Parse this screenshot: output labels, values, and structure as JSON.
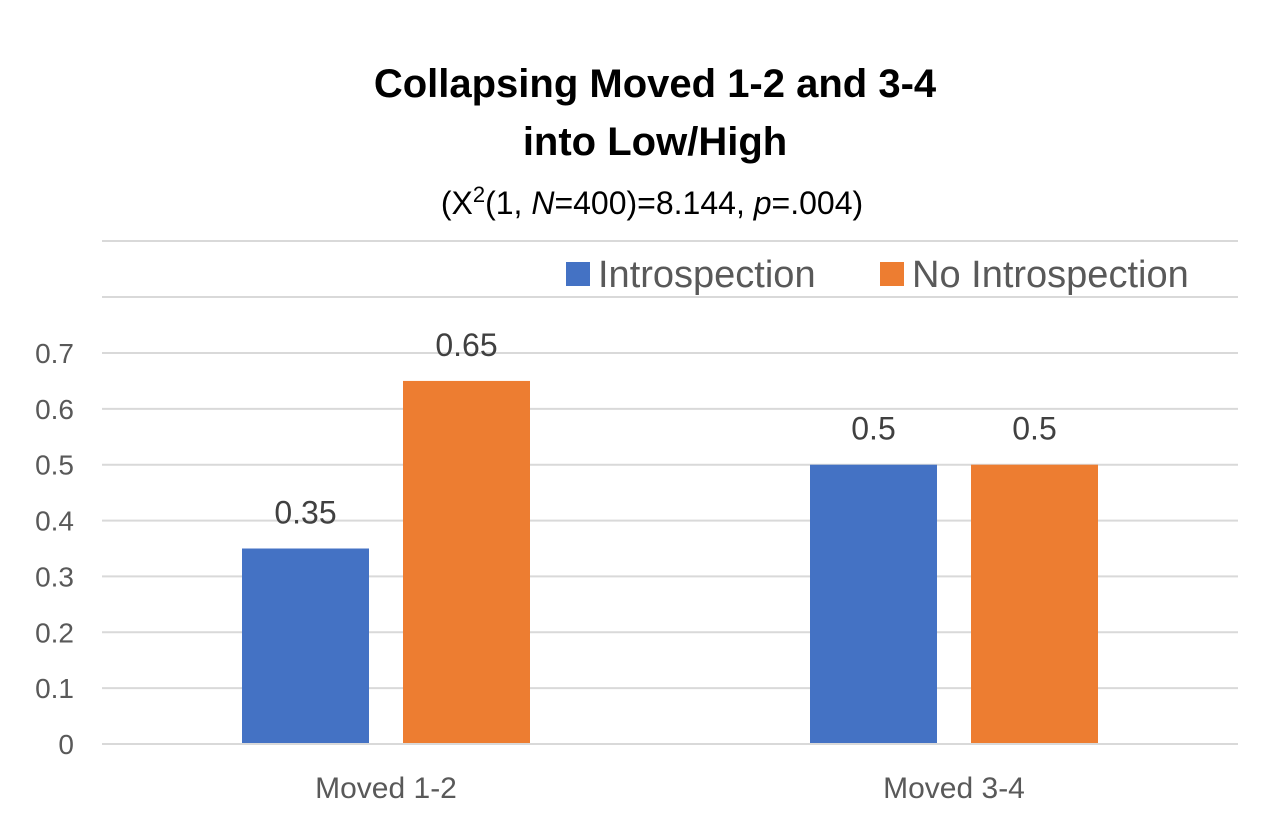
{
  "chart_data": {
    "type": "bar",
    "title": "Collapsing Moved 1-2 and 3-4 into Low/High",
    "title_lines": [
      "Collapsing Moved 1-2 and 3-4",
      "into Low/High"
    ],
    "subtitle": {
      "open": "(X",
      "sup": "2",
      "part1": "(1, ",
      "n_symbol": "N",
      "part2": "=400)=8.144, ",
      "p_symbol": "p",
      "part3": "=.004)"
    },
    "categories": [
      "Moved 1-2",
      "Moved 3-4"
    ],
    "series": [
      {
        "name": "Introspection",
        "values": [
          0.35,
          0.5
        ],
        "labels": [
          "0.35",
          "0.5"
        ],
        "color": "#4472c4"
      },
      {
        "name": "No Introspection",
        "values": [
          0.65,
          0.5
        ],
        "labels": [
          "0.65",
          "0.5"
        ],
        "color": "#ed7d31"
      }
    ],
    "yticks": [
      "0",
      "0.1",
      "0.2",
      "0.3",
      "0.4",
      "0.5",
      "0.6",
      "0.7"
    ],
    "ylim": [
      0,
      0.7
    ],
    "xlabel": "",
    "ylabel": "",
    "grid": true,
    "legend_position": "top-right"
  }
}
